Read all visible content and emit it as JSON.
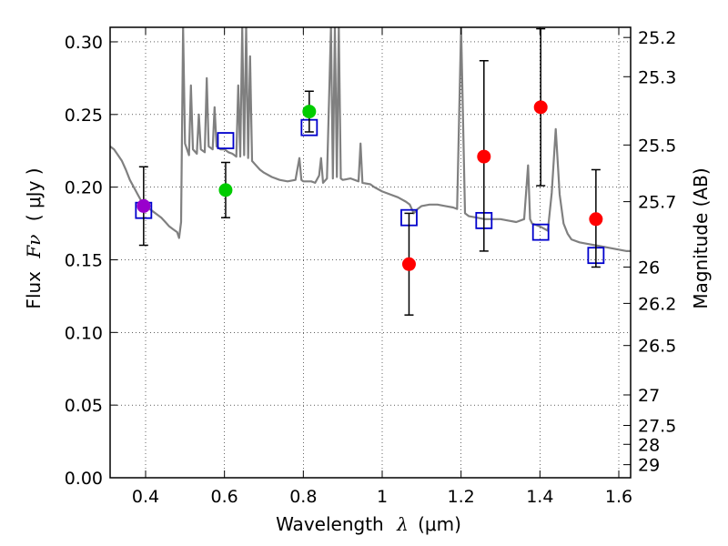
{
  "chart_data": {
    "type": "scatter",
    "xlabel_prefix": "Wavelength",
    "xlabel_symbol": "λ",
    "xlabel_unit": "(μm)",
    "ylabel_prefix": "Flux",
    "ylabel_symbol": "Fν",
    "ylabel_unit": "( μJy )",
    "y2label": "Magnitude (AB)",
    "xlim": [
      0.31,
      1.63
    ],
    "ylim": [
      0.0,
      0.31
    ],
    "grid": true,
    "x_ticks": [
      {
        "value": 0.4,
        "label": "0.4"
      },
      {
        "value": 0.6,
        "label": "0.6"
      },
      {
        "value": 0.8,
        "label": "0.8"
      },
      {
        "value": 1.0,
        "label": "1"
      },
      {
        "value": 1.2,
        "label": "1.2"
      },
      {
        "value": 1.4,
        "label": "1.4"
      },
      {
        "value": 1.6,
        "label": "1.6"
      }
    ],
    "y_ticks": [
      {
        "value": 0.0,
        "label": "0.00"
      },
      {
        "value": 0.05,
        "label": "0.05"
      },
      {
        "value": 0.1,
        "label": "0.10"
      },
      {
        "value": 0.15,
        "label": "0.15"
      },
      {
        "value": 0.2,
        "label": "0.20"
      },
      {
        "value": 0.25,
        "label": "0.25"
      },
      {
        "value": 0.3,
        "label": "0.30"
      }
    ],
    "mag_ticks": [
      {
        "flux": 0.303,
        "label": "25.2"
      },
      {
        "flux": 0.276,
        "label": "25.3"
      },
      {
        "flux": 0.229,
        "label": "25.5"
      },
      {
        "flux": 0.19,
        "label": "25.7"
      },
      {
        "flux": 0.145,
        "label": "26"
      },
      {
        "flux": 0.12,
        "label": "26.2"
      },
      {
        "flux": 0.091,
        "label": "26.5"
      },
      {
        "flux": 0.057,
        "label": "27"
      },
      {
        "flux": 0.036,
        "label": "27.5"
      },
      {
        "flux": 0.023,
        "label": "28"
      },
      {
        "flux": 0.009,
        "label": "29"
      }
    ],
    "model_color": "#808080",
    "model_spectrum": [
      [
        0.31,
        0.228
      ],
      [
        0.32,
        0.226
      ],
      [
        0.33,
        0.222
      ],
      [
        0.34,
        0.218
      ],
      [
        0.35,
        0.212
      ],
      [
        0.36,
        0.205
      ],
      [
        0.37,
        0.2
      ],
      [
        0.38,
        0.195
      ],
      [
        0.39,
        0.19
      ],
      [
        0.4,
        0.187
      ],
      [
        0.41,
        0.185
      ],
      [
        0.42,
        0.183
      ],
      [
        0.43,
        0.181
      ],
      [
        0.44,
        0.179
      ],
      [
        0.45,
        0.176
      ],
      [
        0.46,
        0.173
      ],
      [
        0.47,
        0.171
      ],
      [
        0.48,
        0.169
      ],
      [
        0.485,
        0.165
      ],
      [
        0.49,
        0.176
      ],
      [
        0.495,
        0.31
      ],
      [
        0.5,
        0.23
      ],
      [
        0.51,
        0.222
      ],
      [
        0.515,
        0.27
      ],
      [
        0.52,
        0.226
      ],
      [
        0.53,
        0.223
      ],
      [
        0.535,
        0.25
      ],
      [
        0.54,
        0.226
      ],
      [
        0.55,
        0.224
      ],
      [
        0.555,
        0.275
      ],
      [
        0.56,
        0.228
      ],
      [
        0.57,
        0.226
      ],
      [
        0.575,
        0.255
      ],
      [
        0.58,
        0.228
      ],
      [
        0.59,
        0.226
      ],
      [
        0.6,
        0.226
      ],
      [
        0.61,
        0.224
      ],
      [
        0.62,
        0.223
      ],
      [
        0.63,
        0.221
      ],
      [
        0.635,
        0.27
      ],
      [
        0.64,
        0.221
      ],
      [
        0.645,
        0.31
      ],
      [
        0.65,
        0.222
      ],
      [
        0.655,
        0.31
      ],
      [
        0.66,
        0.22
      ],
      [
        0.665,
        0.29
      ],
      [
        0.67,
        0.218
      ],
      [
        0.68,
        0.215
      ],
      [
        0.69,
        0.212
      ],
      [
        0.7,
        0.21
      ],
      [
        0.72,
        0.207
      ],
      [
        0.74,
        0.205
      ],
      [
        0.76,
        0.204
      ],
      [
        0.78,
        0.205
      ],
      [
        0.79,
        0.22
      ],
      [
        0.795,
        0.205
      ],
      [
        0.8,
        0.204
      ],
      [
        0.82,
        0.204
      ],
      [
        0.83,
        0.203
      ],
      [
        0.84,
        0.208
      ],
      [
        0.845,
        0.22
      ],
      [
        0.85,
        0.203
      ],
      [
        0.86,
        0.206
      ],
      [
        0.87,
        0.31
      ],
      [
        0.875,
        0.206
      ],
      [
        0.88,
        0.31
      ],
      [
        0.885,
        0.207
      ],
      [
        0.89,
        0.31
      ],
      [
        0.895,
        0.206
      ],
      [
        0.9,
        0.205
      ],
      [
        0.92,
        0.206
      ],
      [
        0.94,
        0.204
      ],
      [
        0.945,
        0.23
      ],
      [
        0.95,
        0.203
      ],
      [
        0.97,
        0.202
      ],
      [
        0.98,
        0.2
      ],
      [
        1.0,
        0.197
      ],
      [
        1.02,
        0.195
      ],
      [
        1.04,
        0.193
      ],
      [
        1.06,
        0.19
      ],
      [
        1.07,
        0.188
      ],
      [
        1.08,
        0.182
      ],
      [
        1.09,
        0.185
      ],
      [
        1.1,
        0.187
      ],
      [
        1.12,
        0.188
      ],
      [
        1.14,
        0.188
      ],
      [
        1.16,
        0.187
      ],
      [
        1.18,
        0.186
      ],
      [
        1.19,
        0.185
      ],
      [
        1.2,
        0.31
      ],
      [
        1.21,
        0.182
      ],
      [
        1.22,
        0.18
      ],
      [
        1.24,
        0.179
      ],
      [
        1.26,
        0.178
      ],
      [
        1.28,
        0.178
      ],
      [
        1.3,
        0.178
      ],
      [
        1.32,
        0.177
      ],
      [
        1.34,
        0.176
      ],
      [
        1.36,
        0.178
      ],
      [
        1.37,
        0.215
      ],
      [
        1.375,
        0.178
      ],
      [
        1.38,
        0.175
      ],
      [
        1.4,
        0.173
      ],
      [
        1.42,
        0.17
      ],
      [
        1.43,
        0.196
      ],
      [
        1.44,
        0.24
      ],
      [
        1.45,
        0.195
      ],
      [
        1.46,
        0.175
      ],
      [
        1.47,
        0.168
      ],
      [
        1.48,
        0.164
      ],
      [
        1.5,
        0.162
      ],
      [
        1.52,
        0.161
      ],
      [
        1.54,
        0.16
      ],
      [
        1.56,
        0.159
      ],
      [
        1.58,
        0.158
      ],
      [
        1.6,
        0.157
      ],
      [
        1.62,
        0.156
      ],
      [
        1.63,
        0.156
      ]
    ],
    "model_photometry": {
      "color": "#0000cc",
      "points": [
        {
          "x": 0.395,
          "y": 0.184
        },
        {
          "x": 0.603,
          "y": 0.232
        },
        {
          "x": 0.815,
          "y": 0.241
        },
        {
          "x": 1.068,
          "y": 0.179
        },
        {
          "x": 1.258,
          "y": 0.177
        },
        {
          "x": 1.402,
          "y": 0.169
        },
        {
          "x": 1.542,
          "y": 0.153
        }
      ]
    },
    "observations": [
      {
        "x": 0.395,
        "y": 0.187,
        "yerr_low": 0.16,
        "yerr_high": 0.214,
        "color": "#9900cc"
      },
      {
        "x": 0.603,
        "y": 0.198,
        "yerr_low": 0.179,
        "yerr_high": 0.217,
        "color": "#00cc00"
      },
      {
        "x": 0.815,
        "y": 0.252,
        "yerr_low": 0.238,
        "yerr_high": 0.266,
        "color": "#00cc00"
      },
      {
        "x": 1.068,
        "y": 0.147,
        "yerr_low": 0.112,
        "yerr_high": 0.182,
        "color": "#ff0000"
      },
      {
        "x": 1.258,
        "y": 0.221,
        "yerr_low": 0.156,
        "yerr_high": 0.287,
        "color": "#ff0000"
      },
      {
        "x": 1.402,
        "y": 0.255,
        "yerr_low": 0.201,
        "yerr_high": 0.309,
        "color": "#ff0000"
      },
      {
        "x": 1.542,
        "y": 0.178,
        "yerr_low": 0.145,
        "yerr_high": 0.212,
        "color": "#ff0000"
      }
    ]
  }
}
